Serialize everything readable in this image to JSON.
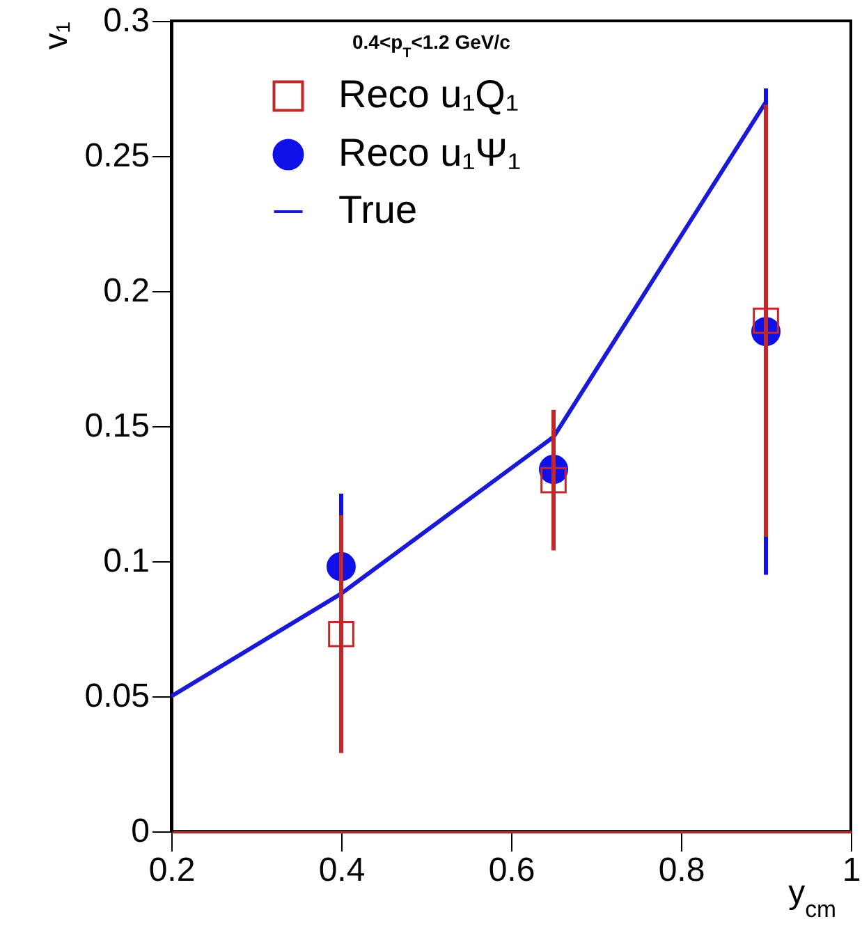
{
  "chart_data": {
    "type": "scatter",
    "xlabel": "y$_{cm}$",
    "ylabel": "v₁",
    "annotations": [
      "0.4<p$_{T}$<1.2 GeV/c"
    ],
    "xlim": [
      0.2,
      1
    ],
    "xticks": [
      0.2,
      0.4,
      0.6,
      0.8,
      1
    ],
    "ylim": [
      0,
      0.3
    ],
    "yticks": [
      0,
      0.05,
      0.1,
      0.15,
      0.2,
      0.25,
      0.3
    ],
    "legend": "top left",
    "grid": false,
    "series": [
      {
        "name": "True",
        "type": "line",
        "color": "#1a1ad6",
        "x": [
          0.2,
          0.4,
          0.65,
          0.9
        ],
        "values": [
          0.05,
          0.088,
          0.146,
          0.27
        ]
      },
      {
        "name": "Reco u₁Ψ₁",
        "marker": "circle",
        "color": "#1010e8",
        "x": [
          0.4,
          0.65,
          0.9
        ],
        "values": [
          0.098,
          0.134,
          0.185
        ],
        "errors": [
          0.027,
          null,
          0.09
        ]
      },
      {
        "name": "Reco u₁Q₁",
        "marker": "square",
        "color": "#c0282a",
        "x": [
          0.4,
          0.65,
          0.9
        ],
        "values": [
          0.073,
          0.13,
          0.189
        ],
        "errors": [
          0.044,
          0.026,
          0.08
        ]
      }
    ]
  }
}
